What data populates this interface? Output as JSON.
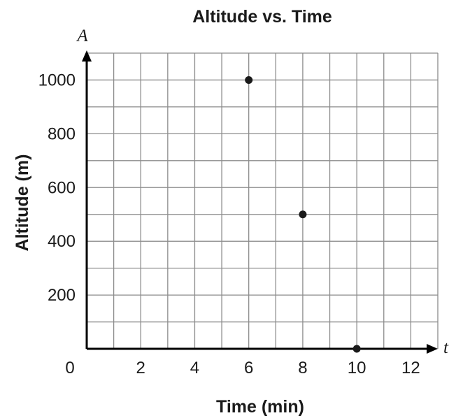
{
  "chart_data": {
    "type": "scatter",
    "title": "Altitude vs. Time",
    "xlabel": "Time (min)",
    "ylabel": "Altitude (m)",
    "x_axis_var": "t",
    "y_axis_var": "A",
    "xlim": [
      0,
      13
    ],
    "ylim": [
      0,
      1100
    ],
    "x_grid_step": 1,
    "y_grid_step": 100,
    "x_tick_labels": [
      {
        "value": 0,
        "label": "0"
      },
      {
        "value": 2,
        "label": "2"
      },
      {
        "value": 4,
        "label": "4"
      },
      {
        "value": 6,
        "label": "6"
      },
      {
        "value": 8,
        "label": "8"
      },
      {
        "value": 10,
        "label": "10"
      },
      {
        "value": 12,
        "label": "12"
      }
    ],
    "y_tick_labels": [
      {
        "value": 200,
        "label": "200"
      },
      {
        "value": 400,
        "label": "400"
      },
      {
        "value": 600,
        "label": "600"
      },
      {
        "value": 800,
        "label": "800"
      },
      {
        "value": 1000,
        "label": "1000"
      }
    ],
    "grid": true,
    "points": [
      {
        "x": 6,
        "y": 1000
      },
      {
        "x": 8,
        "y": 500
      },
      {
        "x": 10,
        "y": 0
      }
    ],
    "colors": {
      "grid": "#8c8c8c",
      "axis": "#000000",
      "point": "#1a1a1a",
      "text": "#1a1a1a"
    }
  }
}
